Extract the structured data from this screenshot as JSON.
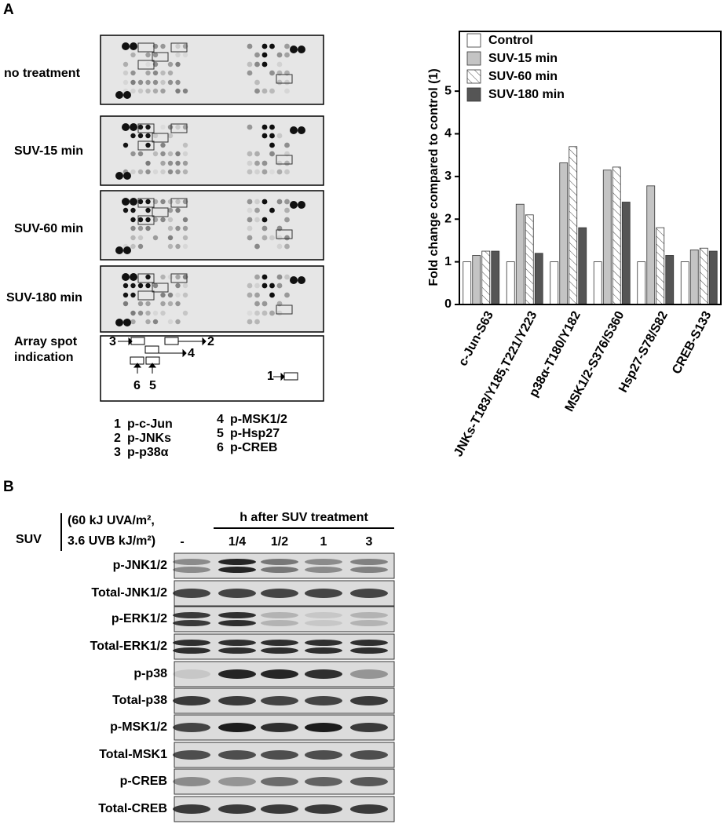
{
  "panel_a": {
    "label": "A",
    "array_labels": [
      "no treatment",
      "SUV-15 min",
      "SUV-60 min",
      "SUV-180 min"
    ],
    "spot_indication_label": [
      "Array spot",
      "indication"
    ],
    "spot_numbers": [
      "1",
      "2",
      "3",
      "4",
      "5",
      "6"
    ],
    "spot_legend": [
      {
        "number": "1",
        "label": "p-c-Jun"
      },
      {
        "number": "2",
        "label": "p-JNKs"
      },
      {
        "number": "3",
        "label": "p-p38α"
      },
      {
        "number": "4",
        "label": "p-MSK1/2"
      },
      {
        "number": "5",
        "label": "p-Hsp27"
      },
      {
        "number": "6",
        "label": "p-CREB"
      }
    ]
  },
  "chart_data": {
    "type": "bar",
    "y_label": "Fold change compared to control (1)",
    "categories": [
      "c-Jun-S63",
      "JNKs-T183/Y185,T221/Y223",
      "p38α-T180/Y182",
      "MSK1/2-S376/S360",
      "Hsp27-S78/S82",
      "CREB-S133"
    ],
    "series": [
      {
        "name": "Control",
        "color": "#ffffff",
        "values": [
          1,
          1,
          1,
          1,
          1,
          1
        ]
      },
      {
        "name": "SUV-15 min",
        "color": "#c4c4c4",
        "values": [
          1.15,
          2.35,
          3.32,
          3.15,
          2.78,
          1.28
        ]
      },
      {
        "name": "SUV-60 min",
        "color": "#ffffff",
        "pattern": "hatch",
        "values": [
          1.25,
          2.1,
          3.7,
          3.22,
          1.8,
          1.32
        ]
      },
      {
        "name": "SUV-180 min",
        "color": "#555555",
        "values": [
          1.25,
          1.2,
          1.8,
          2.4,
          1.15,
          1.25
        ]
      }
    ],
    "ylim": [
      0,
      6.4
    ],
    "yticks": [
      0,
      1,
      2,
      3,
      4,
      5
    ],
    "grid": false,
    "legend": "top-left"
  },
  "panel_b": {
    "label": "B",
    "treatment": "SUV",
    "dose": [
      "(60 kJ UVA/m²,",
      "3.6 UVB kJ/m²)"
    ],
    "time_header": "h after SUV treatment",
    "lanes": [
      "-",
      "1/4",
      "1/2",
      "1",
      "3"
    ],
    "rows": [
      "p-JNK1/2",
      "Total-JNK1/2",
      "p-ERK1/2",
      "Total-ERK1/2",
      "p-p38",
      "Total-p38",
      "p-MSK1/2",
      "Total-MSK1",
      "p-CREB",
      "Total-CREB"
    ]
  }
}
